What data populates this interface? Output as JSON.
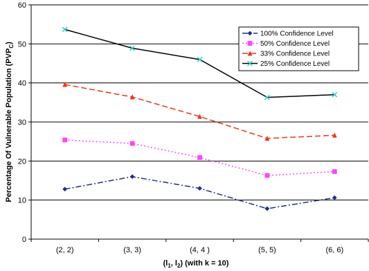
{
  "chart_data": {
    "type": "line",
    "categories": [
      "(2, 2)",
      "(3, 3)",
      "(4, 4 )",
      "(5, 5)",
      "(6, 6)"
    ],
    "xlabel_parts": [
      "(l",
      "1",
      ", l",
      "2",
      ") (with k = 10)"
    ],
    "ylabel_parts": [
      "Percentage Of Vulnerable Population (PVP",
      "C",
      ")"
    ],
    "ylim": [
      0,
      60
    ],
    "yticks": [
      0,
      10,
      20,
      30,
      40,
      50,
      60
    ],
    "grid": "horizontal",
    "legend_position": "top-right",
    "series": [
      {
        "name": "100% Confidence Level",
        "color": "#1f2d8a",
        "marker": "diamond",
        "dash": "dashdot",
        "values": [
          12.8,
          16.0,
          13.0,
          7.8,
          10.6
        ]
      },
      {
        "name": "50% Confidence Level",
        "color": "#ff44ff",
        "marker": "square",
        "dash": "dot",
        "values": [
          25.4,
          24.5,
          20.9,
          16.3,
          17.3
        ]
      },
      {
        "name": "33% Confidence Level",
        "color": "#e8361c",
        "marker": "triangle",
        "dash": "dash",
        "values": [
          39.6,
          36.4,
          31.4,
          25.8,
          26.6
        ]
      },
      {
        "name": "25% Confidence Level",
        "color": "#000000",
        "marker": "star",
        "markerColor": "#33cccc",
        "dash": "solid",
        "values": [
          53.7,
          48.9,
          46.0,
          36.3,
          37.0
        ]
      }
    ]
  }
}
